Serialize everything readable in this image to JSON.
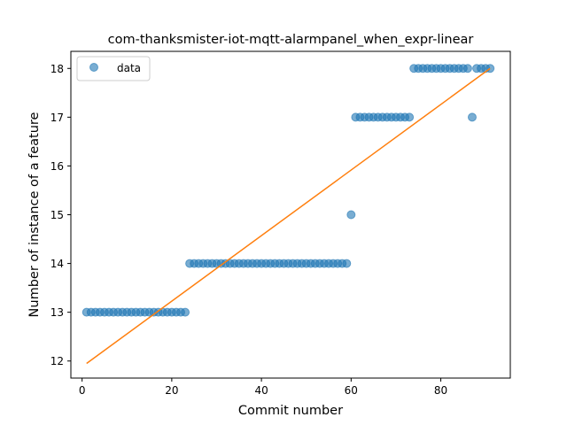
{
  "chart_data": {
    "type": "scatter",
    "title": "com-thanksmister-iot-mqtt-alarmpanel_when_expr-linear",
    "xlabel": "Commit number",
    "ylabel": "Number of instance of a feature",
    "xlim": [
      -2.5,
      95.5
    ],
    "ylim": [
      11.65,
      18.35
    ],
    "x_ticks": [
      0,
      20,
      40,
      60,
      80
    ],
    "y_ticks": [
      12,
      13,
      14,
      15,
      16,
      17,
      18
    ],
    "grid": false,
    "legend": {
      "position": "top-left",
      "entries": [
        "data"
      ]
    },
    "series": [
      {
        "name": "data",
        "kind": "scatter",
        "color": "#1f77b4",
        "alpha": 0.6,
        "points": [
          [
            1,
            13
          ],
          [
            2,
            13
          ],
          [
            3,
            13
          ],
          [
            4,
            13
          ],
          [
            5,
            13
          ],
          [
            6,
            13
          ],
          [
            7,
            13
          ],
          [
            8,
            13
          ],
          [
            9,
            13
          ],
          [
            10,
            13
          ],
          [
            11,
            13
          ],
          [
            12,
            13
          ],
          [
            13,
            13
          ],
          [
            14,
            13
          ],
          [
            15,
            13
          ],
          [
            16,
            13
          ],
          [
            17,
            13
          ],
          [
            18,
            13
          ],
          [
            19,
            13
          ],
          [
            20,
            13
          ],
          [
            21,
            13
          ],
          [
            22,
            13
          ],
          [
            23,
            13
          ],
          [
            24,
            14
          ],
          [
            25,
            14
          ],
          [
            26,
            14
          ],
          [
            27,
            14
          ],
          [
            28,
            14
          ],
          [
            29,
            14
          ],
          [
            30,
            14
          ],
          [
            31,
            14
          ],
          [
            32,
            14
          ],
          [
            33,
            14
          ],
          [
            34,
            14
          ],
          [
            35,
            14
          ],
          [
            36,
            14
          ],
          [
            37,
            14
          ],
          [
            38,
            14
          ],
          [
            39,
            14
          ],
          [
            40,
            14
          ],
          [
            41,
            14
          ],
          [
            42,
            14
          ],
          [
            43,
            14
          ],
          [
            44,
            14
          ],
          [
            45,
            14
          ],
          [
            46,
            14
          ],
          [
            47,
            14
          ],
          [
            48,
            14
          ],
          [
            49,
            14
          ],
          [
            50,
            14
          ],
          [
            51,
            14
          ],
          [
            52,
            14
          ],
          [
            53,
            14
          ],
          [
            54,
            14
          ],
          [
            55,
            14
          ],
          [
            56,
            14
          ],
          [
            57,
            14
          ],
          [
            58,
            14
          ],
          [
            59,
            14
          ],
          [
            60,
            15
          ],
          [
            61,
            17
          ],
          [
            62,
            17
          ],
          [
            63,
            17
          ],
          [
            64,
            17
          ],
          [
            65,
            17
          ],
          [
            66,
            17
          ],
          [
            67,
            17
          ],
          [
            68,
            17
          ],
          [
            69,
            17
          ],
          [
            70,
            17
          ],
          [
            71,
            17
          ],
          [
            72,
            17
          ],
          [
            73,
            17
          ],
          [
            74,
            18
          ],
          [
            75,
            18
          ],
          [
            76,
            18
          ],
          [
            77,
            18
          ],
          [
            78,
            18
          ],
          [
            79,
            18
          ],
          [
            80,
            18
          ],
          [
            81,
            18
          ],
          [
            82,
            18
          ],
          [
            83,
            18
          ],
          [
            84,
            18
          ],
          [
            85,
            18
          ],
          [
            86,
            18
          ],
          [
            87,
            17
          ],
          [
            88,
            18
          ],
          [
            89,
            18
          ],
          [
            90,
            18
          ],
          [
            91,
            18
          ]
        ]
      },
      {
        "kind": "line",
        "color": "#ff7f0e",
        "points": [
          [
            1,
            11.95
          ],
          [
            91,
            18.0
          ]
        ]
      }
    ]
  }
}
